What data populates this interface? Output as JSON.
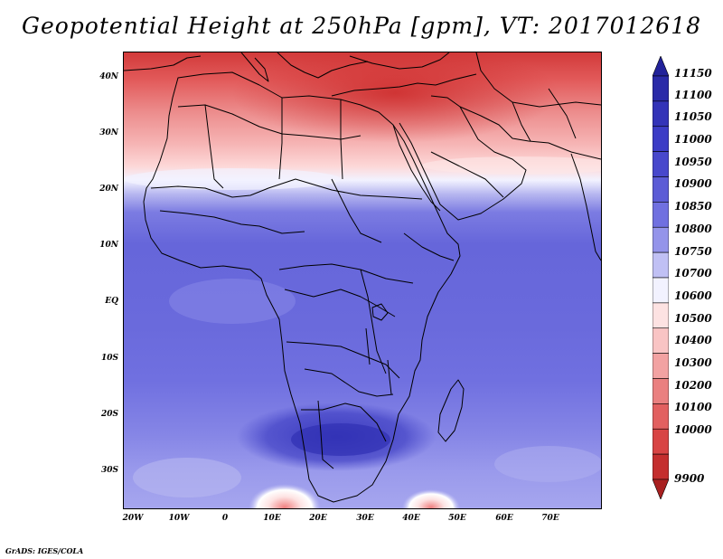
{
  "title": "Geopotential Height at 250hPa [gpm], VT: 2017012618",
  "footer": "GrADS: IGES/COLA",
  "map": {
    "lon_range": [
      -22,
      80
    ],
    "lat_range": [
      -37,
      45
    ],
    "lat_ticks": [
      "40N",
      "30N",
      "20N",
      "10N",
      "EQ",
      "10S",
      "20S",
      "30S"
    ],
    "lat_values": [
      40,
      30,
      20,
      10,
      0,
      -10,
      -20,
      -30
    ],
    "lon_ticks": [
      "20W",
      "10W",
      "0",
      "10E",
      "20E",
      "30E",
      "40E",
      "50E",
      "60E",
      "70E"
    ],
    "lon_values": [
      -20,
      -10,
      0,
      10,
      20,
      30,
      40,
      50,
      60,
      70
    ]
  },
  "legend": {
    "labels": [
      "11150",
      "11100",
      "11050",
      "11000",
      "10950",
      "10900",
      "10850",
      "10800",
      "10750",
      "10700",
      "10600",
      "10500",
      "10400",
      "10300",
      "10200",
      "10100",
      "10000",
      "9900"
    ],
    "colors": [
      "#22229a",
      "#2a2aa8",
      "#3333b8",
      "#3c3cc6",
      "#4848cc",
      "#5c5cd6",
      "#7070e0",
      "#9494ea",
      "#c0c0f4",
      "#f2f2ff",
      "#fde2e2",
      "#f9c4c4",
      "#f2a2a2",
      "#ea8080",
      "#e26060",
      "#d84444",
      "#c42e2e",
      "#a82020"
    ]
  }
}
